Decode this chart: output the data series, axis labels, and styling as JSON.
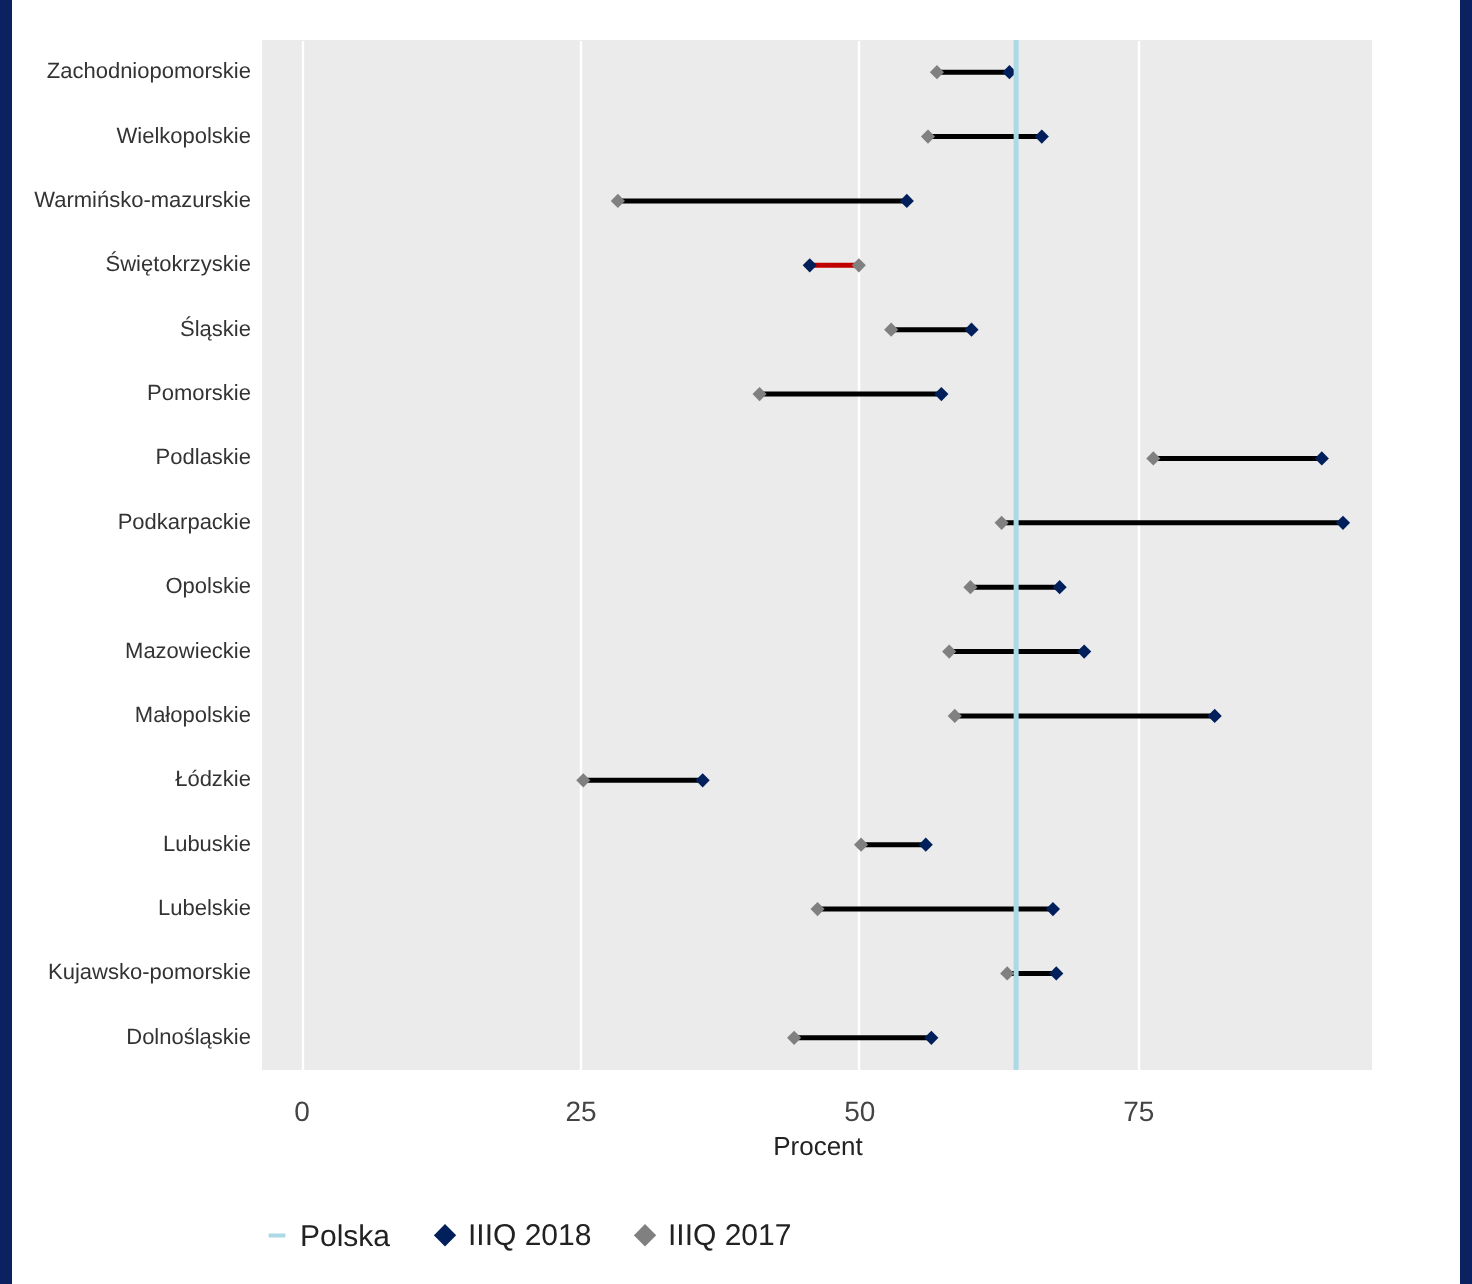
{
  "chart_data": {
    "type": "scatter",
    "orientation": "horizontal",
    "xlabel": "Procent",
    "categories": [
      "Zachodniopomorskie",
      "Wielkopolskie",
      "Warmińsko-mazurskie",
      "Świętokrzyskie",
      "Śląskie",
      "Pomorskie",
      "Podlaskie",
      "Podkarpackie",
      "Opolskie",
      "Mazowieckie",
      "Małopolskie",
      "Łódzkie",
      "Lubuskie",
      "Lubelskie",
      "Kujawsko-pomorskie",
      "Dolnośląskie"
    ],
    "xlim": [
      -3.5,
      96
    ],
    "xticks": [
      0,
      25,
      50,
      75
    ],
    "grid": "x",
    "legend": "bottom",
    "marker": "diamond",
    "ref_lines": [
      {
        "axis": "x",
        "value": 64.1,
        "label": "Polska",
        "color": "#add8e6"
      }
    ],
    "series": [
      {
        "type": "bar",
        "base": [
          57.0,
          56.2,
          28.4,
          50.0,
          52.9,
          41.1,
          76.4,
          62.8,
          60.0,
          58.1,
          58.6,
          25.3,
          50.2,
          46.3,
          63.3,
          44.2
        ],
        "values": [
          6.5,
          10.2,
          25.9,
          -4.4,
          7.2,
          16.3,
          15.1,
          30.6,
          8.0,
          12.1,
          23.3,
          10.7,
          5.8,
          21.1,
          4.4,
          12.3
        ],
        "colors": [
          "#000000",
          "#000000",
          "#000000",
          "#c00000",
          "#000000",
          "#000000",
          "#000000",
          "#000000",
          "#000000",
          "#000000",
          "#000000",
          "#000000",
          "#000000",
          "#000000",
          "#000000",
          "#000000"
        ]
      },
      {
        "name": "IIIQ 2018",
        "color": "#001f5b",
        "values": [
          63.5,
          66.4,
          54.3,
          45.6,
          60.1,
          57.4,
          91.5,
          93.4,
          68.0,
          70.2,
          81.9,
          36.0,
          56.0,
          67.4,
          67.7,
          56.5
        ]
      },
      {
        "name": "IIIQ 2017",
        "color": "#808080",
        "values": [
          57.0,
          56.2,
          28.4,
          50.0,
          52.9,
          41.1,
          76.4,
          62.8,
          60.0,
          58.1,
          58.6,
          25.3,
          50.2,
          46.3,
          63.3,
          44.2
        ]
      }
    ]
  }
}
